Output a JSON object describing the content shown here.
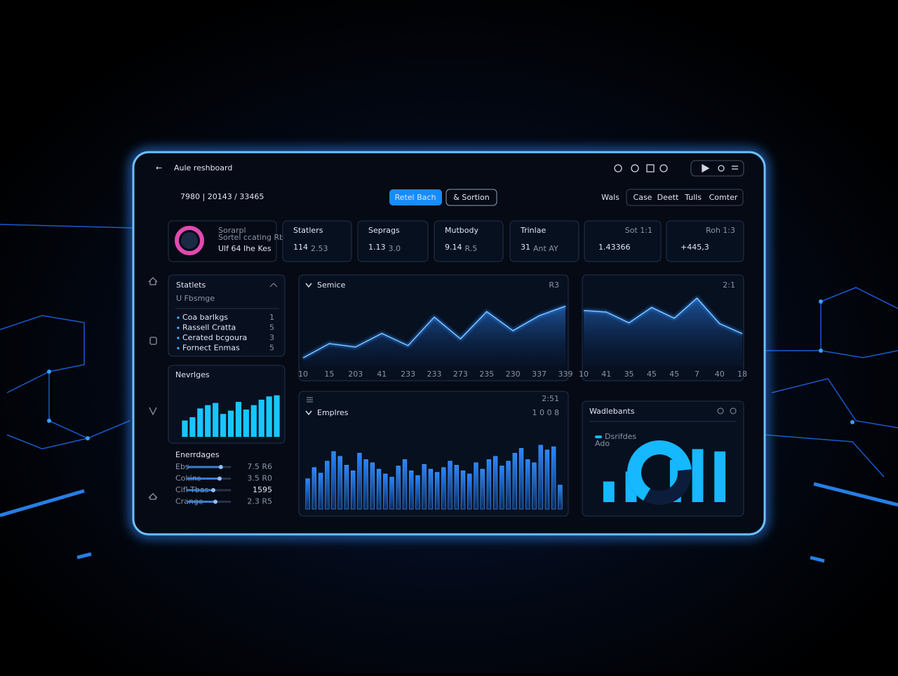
{
  "header": {
    "title": "Aule reshboard",
    "date": "7980 | 20143  /  33465"
  },
  "toolbar": {
    "primary": "Retel Bach",
    "secondary": "& Sortion",
    "label": "Wals",
    "tabs": [
      "Case",
      "Deett",
      "Tulls",
      "Comter"
    ]
  },
  "profile": {
    "title": "Sorarpl",
    "subtitle": "Sortel ccating Rbac",
    "detail": "Ulf 64 Ihe Kes"
  },
  "stats": [
    {
      "label": "Statlers",
      "value": "114",
      "unit": "2.53"
    },
    {
      "label": "Seprags",
      "value": "1.13",
      "unit": "3.0"
    },
    {
      "label": "Mutbody",
      "value": "9.14",
      "unit": "R.5"
    },
    {
      "label": "Trinlae",
      "value": "31",
      "unit": "Ant AY"
    },
    {
      "label": "Sot 1:1",
      "value": "1.43366"
    },
    {
      "label": "Roh 1:3",
      "value": "+445,3"
    }
  ],
  "statlets": {
    "title": "Statlets",
    "subtitle": "U Fbsmge",
    "items": [
      {
        "name": "Coa barlkgs",
        "count": "1"
      },
      {
        "name": "Rassell Cratta",
        "count": "5"
      },
      {
        "name": "Cerated bcgoura",
        "count": "3"
      },
      {
        "name": "Fornect Enmas",
        "count": "5"
      }
    ]
  },
  "enerrdages": {
    "title": "Enerrdages",
    "range": [
      0,
      100
    ],
    "rows": [
      {
        "name": "Ebs",
        "value": "7.5 R6",
        "level": 78
      },
      {
        "name": "Cokins",
        "value": "3.5 R0",
        "level": 75
      },
      {
        "name": "Cifl Tbas",
        "value": "1595",
        "level": 60
      },
      {
        "name": "Crange",
        "value": "2.3 R5",
        "level": 65
      }
    ]
  },
  "chart_data": [
    {
      "type": "area",
      "title": "Semice",
      "badge": "R3",
      "categories": [
        "10",
        "15",
        "203",
        "41",
        "233",
        "233",
        "273",
        "235",
        "230",
        "337",
        "339"
      ],
      "values": [
        12,
        33,
        28,
        48,
        30,
        72,
        40,
        80,
        52,
        74,
        88
      ],
      "color": "#2f8cff",
      "ylim": [
        0,
        100
      ]
    },
    {
      "type": "area",
      "badge": "2:1",
      "categories": [
        "10",
        "41",
        "35",
        "45",
        "45",
        "7",
        "40",
        "18"
      ],
      "values": [
        72,
        70,
        56,
        76,
        62,
        88,
        55,
        42
      ],
      "color": "#2f8cff",
      "ylim": [
        0,
        100
      ]
    },
    {
      "type": "bar",
      "title": "Nevrlges",
      "values": [
        30,
        36,
        52,
        58,
        62,
        42,
        48,
        64,
        50,
        58,
        68,
        74,
        76
      ],
      "color": "#18c6ff",
      "ylim": [
        0,
        100
      ]
    },
    {
      "type": "bar",
      "title": "Emplres",
      "badge": "2:51",
      "note": "1 0 0 8",
      "values": [
        38,
        52,
        45,
        60,
        72,
        66,
        55,
        48,
        70,
        62,
        58,
        50,
        44,
        40,
        54,
        62,
        48,
        42,
        56,
        50,
        46,
        52,
        60,
        55,
        48,
        44,
        58,
        50,
        62,
        66,
        54,
        60,
        70,
        76,
        62,
        58,
        80,
        74,
        78,
        30
      ],
      "color": "#1f74d8",
      "ylim": [
        0,
        100
      ]
    },
    {
      "type": "bar",
      "title": "Wadlebants",
      "subtitle": "Ado",
      "series": [
        {
          "name": "Dsrifdes",
          "color": "#16b8ff",
          "values": [
            35,
            52,
            18,
            72,
            90,
            86
          ]
        }
      ],
      "ylim": [
        0,
        100
      ]
    },
    {
      "type": "gauge",
      "value": 78,
      "color": "#16b8ff",
      "ylim": [
        0,
        100
      ]
    }
  ]
}
